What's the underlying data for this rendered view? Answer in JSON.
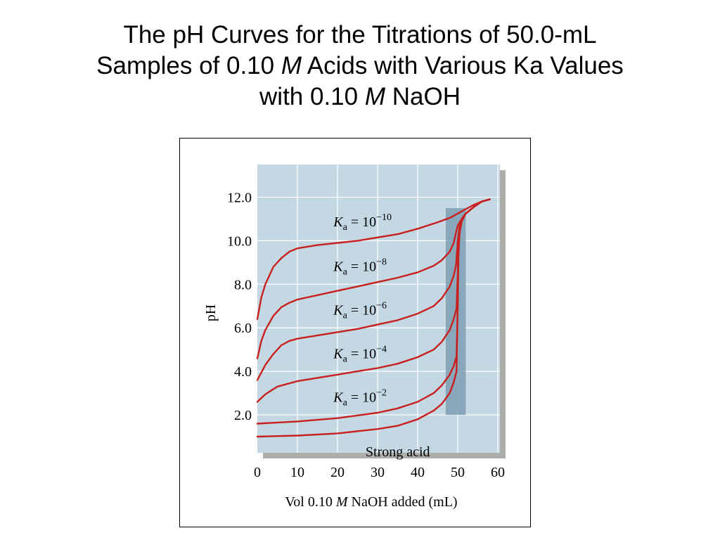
{
  "title": {
    "line1": "The pH Curves for the Titrations of 50.0-mL",
    "line2_a": "Samples of 0.10 ",
    "line2_m": "M",
    "line2_b": " Acids with Various Ka Values",
    "line3_a": "with 0.10 ",
    "line3_m": "M",
    "line3_b": " NaOH"
  },
  "colors": {
    "plot_background": "#c3d8e3",
    "curve": "#c8201e",
    "equivalence_band": "#7f9fb3",
    "grid": "#ffffff",
    "shadow": "#8a8a85"
  },
  "chart_data": {
    "type": "line",
    "xlabel": {
      "prefix": "Vol 0.10 ",
      "italic": "M",
      "suffix": " NaOH added (mL)"
    },
    "ylabel": "pH",
    "xlim": [
      0,
      60
    ],
    "ylim": [
      0,
      13.5
    ],
    "x_ticks": [
      "0",
      "10",
      "20",
      "30",
      "40",
      "50",
      "60"
    ],
    "y_ticks": [
      "2.0",
      "4.0",
      "6.0",
      "8.0",
      "10.0",
      "12.0"
    ],
    "grid": true,
    "equivalence_band": {
      "x": [
        47,
        52
      ],
      "y": [
        2.0,
        11.5
      ]
    },
    "series": [
      {
        "label": {
          "k": "K",
          "sub": "a",
          "mid": " = 10",
          "exp": "−10"
        },
        "points": [
          [
            0,
            6.4
          ],
          [
            1,
            7.4
          ],
          [
            2,
            8.0
          ],
          [
            4,
            8.8
          ],
          [
            6,
            9.2
          ],
          [
            8,
            9.5
          ],
          [
            10,
            9.65
          ],
          [
            15,
            9.8
          ],
          [
            20,
            9.9
          ],
          [
            25,
            10.0
          ],
          [
            30,
            10.15
          ],
          [
            35,
            10.3
          ],
          [
            40,
            10.55
          ],
          [
            45,
            10.85
          ],
          [
            48,
            11.05
          ],
          [
            50,
            11.25
          ],
          [
            52,
            11.45
          ],
          [
            54,
            11.65
          ],
          [
            56,
            11.8
          ],
          [
            58,
            11.9
          ]
        ]
      },
      {
        "label": {
          "k": "K",
          "sub": "a",
          "mid": " = 10",
          "exp": "−8"
        },
        "points": [
          [
            0,
            4.6
          ],
          [
            1,
            5.4
          ],
          [
            2,
            5.9
          ],
          [
            4,
            6.55
          ],
          [
            6,
            6.95
          ],
          [
            8,
            7.15
          ],
          [
            10,
            7.3
          ],
          [
            15,
            7.5
          ],
          [
            20,
            7.7
          ],
          [
            25,
            7.9
          ],
          [
            30,
            8.1
          ],
          [
            35,
            8.3
          ],
          [
            40,
            8.55
          ],
          [
            44,
            8.85
          ],
          [
            46,
            9.1
          ],
          [
            48,
            9.5
          ],
          [
            49,
            9.9
          ],
          [
            49.6,
            10.4
          ],
          [
            50,
            10.7
          ],
          [
            51,
            11.0
          ],
          [
            52,
            11.25
          ],
          [
            54,
            11.55
          ],
          [
            56,
            11.8
          ],
          [
            58,
            11.9
          ]
        ]
      },
      {
        "label": {
          "k": "K",
          "sub": "a",
          "mid": " = 10",
          "exp": "−6"
        },
        "points": [
          [
            0,
            3.6
          ],
          [
            2,
            4.3
          ],
          [
            4,
            4.8
          ],
          [
            6,
            5.2
          ],
          [
            8,
            5.4
          ],
          [
            10,
            5.5
          ],
          [
            15,
            5.65
          ],
          [
            20,
            5.8
          ],
          [
            25,
            5.95
          ],
          [
            30,
            6.15
          ],
          [
            35,
            6.35
          ],
          [
            40,
            6.65
          ],
          [
            44,
            7.0
          ],
          [
            46,
            7.35
          ],
          [
            48,
            7.9
          ],
          [
            49,
            8.4
          ],
          [
            49.6,
            8.9
          ],
          [
            50,
            10.0
          ],
          [
            50.4,
            10.6
          ],
          [
            51,
            11.0
          ],
          [
            52,
            11.25
          ],
          [
            54,
            11.55
          ],
          [
            56,
            11.8
          ],
          [
            58,
            11.9
          ]
        ]
      },
      {
        "label": {
          "k": "K",
          "sub": "a",
          "mid": " = 10",
          "exp": "−4"
        },
        "points": [
          [
            0,
            2.6
          ],
          [
            2,
            2.95
          ],
          [
            5,
            3.3
          ],
          [
            10,
            3.55
          ],
          [
            15,
            3.7
          ],
          [
            20,
            3.85
          ],
          [
            25,
            4.0
          ],
          [
            30,
            4.15
          ],
          [
            35,
            4.35
          ],
          [
            40,
            4.65
          ],
          [
            44,
            5.0
          ],
          [
            46,
            5.35
          ],
          [
            48,
            5.9
          ],
          [
            49,
            6.4
          ],
          [
            49.7,
            6.9
          ],
          [
            50,
            8.5
          ],
          [
            50.2,
            10.0
          ],
          [
            50.5,
            10.6
          ],
          [
            51,
            11.0
          ],
          [
            52,
            11.25
          ],
          [
            54,
            11.55
          ],
          [
            56,
            11.8
          ],
          [
            58,
            11.9
          ]
        ]
      },
      {
        "label": {
          "k": "K",
          "sub": "a",
          "mid": " = 10",
          "exp": "−2"
        },
        "points": [
          [
            0,
            1.6
          ],
          [
            10,
            1.7
          ],
          [
            20,
            1.85
          ],
          [
            30,
            2.1
          ],
          [
            35,
            2.3
          ],
          [
            40,
            2.6
          ],
          [
            44,
            3.0
          ],
          [
            46,
            3.35
          ],
          [
            48,
            3.85
          ],
          [
            49,
            4.25
          ],
          [
            49.7,
            4.7
          ],
          [
            50,
            7.0
          ],
          [
            50.2,
            9.5
          ],
          [
            50.5,
            10.5
          ],
          [
            51,
            11.0
          ],
          [
            52,
            11.25
          ],
          [
            54,
            11.55
          ],
          [
            56,
            11.8
          ],
          [
            58,
            11.9
          ]
        ]
      },
      {
        "label": {
          "text": "Strong acid"
        },
        "points": [
          [
            0,
            1.0
          ],
          [
            10,
            1.05
          ],
          [
            20,
            1.15
          ],
          [
            30,
            1.35
          ],
          [
            35,
            1.5
          ],
          [
            40,
            1.8
          ],
          [
            44,
            2.2
          ],
          [
            46,
            2.5
          ],
          [
            48,
            3.0
          ],
          [
            49,
            3.5
          ],
          [
            49.7,
            4.0
          ],
          [
            50,
            7.0
          ],
          [
            50.1,
            9.0
          ],
          [
            50.4,
            10.3
          ],
          [
            51,
            10.9
          ],
          [
            52,
            11.25
          ],
          [
            54,
            11.55
          ],
          [
            56,
            11.8
          ],
          [
            58,
            11.9
          ]
        ]
      }
    ]
  }
}
